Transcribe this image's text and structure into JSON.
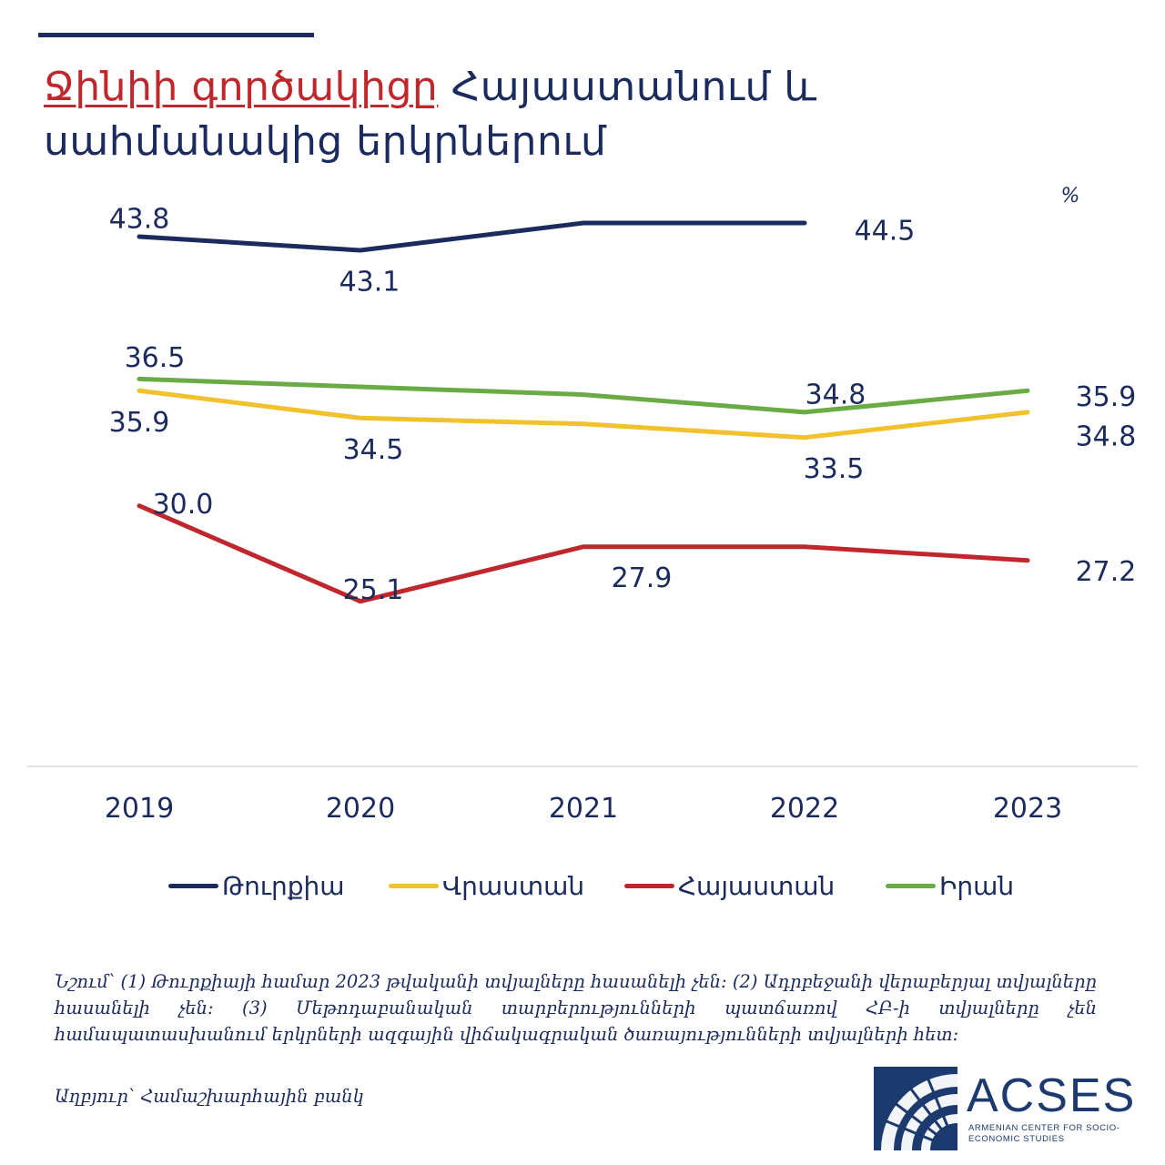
{
  "header": {
    "title_highlight": "Ջինիի գործակիցը",
    "title_rest": " Հայաստանում և սահմանակից երկրներում"
  },
  "chart_data": {
    "type": "line",
    "unit": "%",
    "categories": [
      "2019",
      "2020",
      "2021",
      "2022",
      "2023"
    ],
    "ylim": [
      20,
      48
    ],
    "grid": false,
    "legend_position": "bottom",
    "series": [
      {
        "name": "Թուրքիա",
        "color": "#1c2b5e",
        "values": [
          43.8,
          43.1,
          44.5,
          44.5,
          null
        ],
        "labels": [
          "43.8",
          "43.1",
          "",
          "44.5",
          ""
        ]
      },
      {
        "name": "Վրաստան",
        "color": "#f2c12e",
        "values": [
          35.9,
          34.5,
          34.2,
          33.5,
          34.8
        ],
        "labels": [
          "35.9",
          "34.5",
          "",
          "33.5",
          "34.8"
        ]
      },
      {
        "name": "Հայաստան",
        "color": "#c0272d",
        "values": [
          30.0,
          25.1,
          27.9,
          27.9,
          27.2
        ],
        "labels": [
          "30.0",
          "25.1",
          "27.9",
          "",
          "27.2"
        ]
      },
      {
        "name": "Իրան",
        "color": "#6aab45",
        "values": [
          36.5,
          36.1,
          35.7,
          34.8,
          35.9
        ],
        "labels": [
          "36.5",
          "",
          "",
          "34.8",
          "35.9"
        ]
      }
    ]
  },
  "footer": {
    "note": "Նշում՝ (1) Թուրքիայի համար 2023 թվականի տվյալները հասանելի չեն: (2) Ադրբեջանի վերաբերյալ տվյալները հասանելի չեն: (3) Մեթոդաբանական տարբերությունների պատճառով ՀԲ-ի տվյալները չեն համապատասխանում երկրների ազգային վիճակագրական ծառայությունների տվյալների հետ:",
    "source": "Աղբյուր՝ Համաշխարհային բանկ"
  },
  "logo": {
    "name": "ACSES",
    "subtitle": "ARMENIAN CENTER FOR SOCIO-ECONOMIC STUDIES",
    "color": "#1c3a6e"
  }
}
